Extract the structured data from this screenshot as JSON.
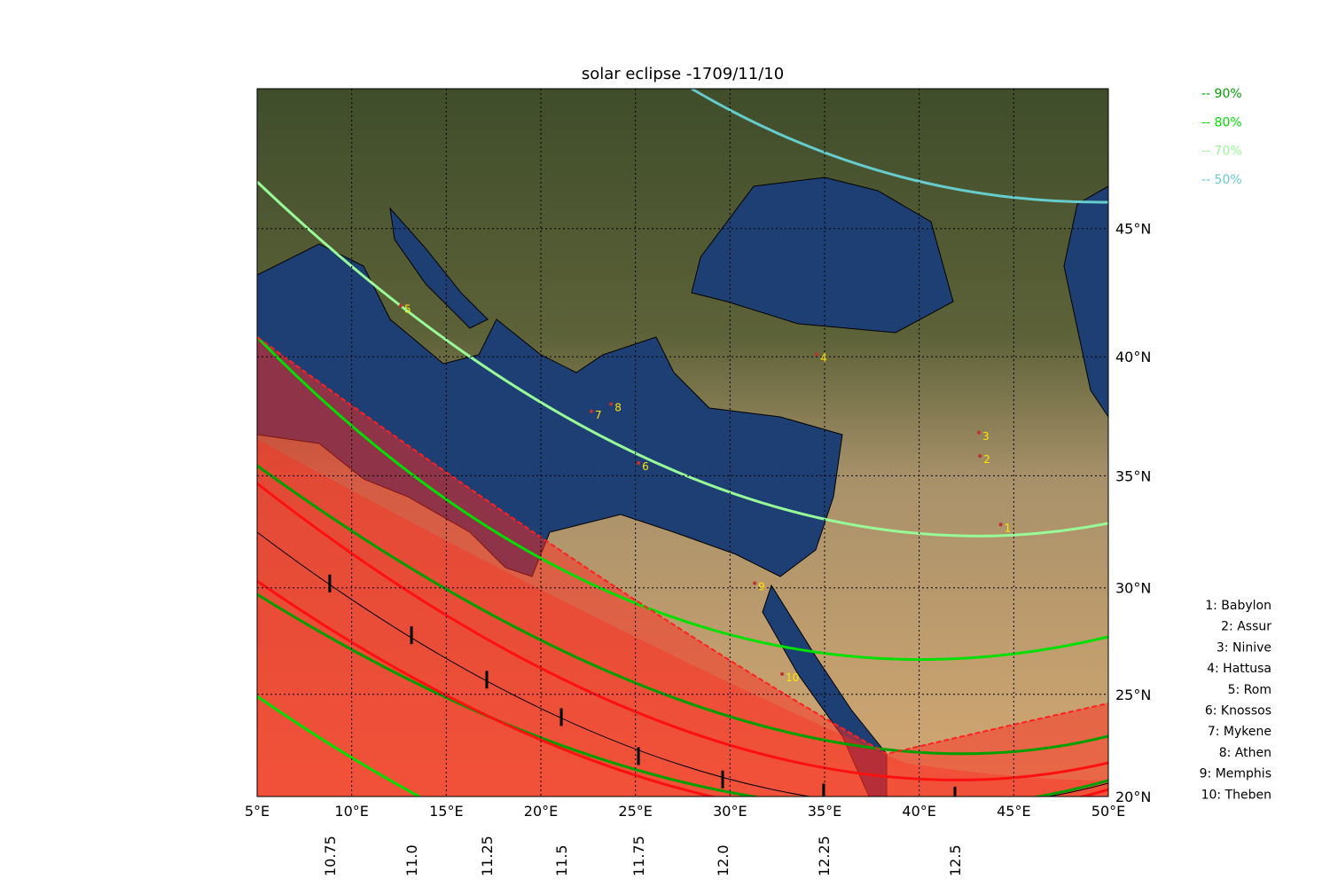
{
  "map": {
    "title": "solar eclipse -1709/11/10",
    "projection": "mercator",
    "xlim": [
      5,
      50
    ],
    "ylim": [
      20,
      50
    ],
    "grid": true,
    "xticks": [
      {
        "value": 5,
        "label": "5°E"
      },
      {
        "value": 10,
        "label": "10°E"
      },
      {
        "value": 15,
        "label": "15°E"
      },
      {
        "value": 20,
        "label": "20°E"
      },
      {
        "value": 25,
        "label": "25°E"
      },
      {
        "value": 30,
        "label": "30°E"
      },
      {
        "value": 35,
        "label": "35°E"
      },
      {
        "value": 40,
        "label": "40°E"
      },
      {
        "value": 45,
        "label": "45°E"
      },
      {
        "value": 50,
        "label": "50°E"
      }
    ],
    "yticks": [
      {
        "value": 20,
        "label": "20°N"
      },
      {
        "value": 25,
        "label": "25°N"
      },
      {
        "value": 30,
        "label": "30°N"
      },
      {
        "value": 35,
        "label": "35°N"
      },
      {
        "value": 40,
        "label": "40°N"
      },
      {
        "value": 45,
        "label": "45°N"
      }
    ],
    "time_marks": [
      {
        "time": "10.75",
        "lon": 8.84,
        "lat": 30.2
      },
      {
        "time": "11.0",
        "lon": 13.16,
        "lat": 27.8
      },
      {
        "time": "11.25",
        "lon": 17.14,
        "lat": 25.7
      },
      {
        "time": "11.5",
        "lon": 21.08,
        "lat": 23.9
      },
      {
        "time": "11.75",
        "lon": 25.16,
        "lat": 22.0
      },
      {
        "time": "12.0",
        "lon": 29.61,
        "lat": 20.85
      },
      {
        "time": "12.25",
        "lon": 34.95,
        "lat": 20.2
      },
      {
        "time": "12.5",
        "lon": 41.89,
        "lat": 20.05
      }
    ],
    "legend": [
      {
        "label": "-- 90%",
        "color": "#00a000"
      },
      {
        "label": "-- 80%",
        "color": "#00e000"
      },
      {
        "label": "-- 70%",
        "color": "#98fb98"
      },
      {
        "label": "-- 50%",
        "color": "#66cccc"
      }
    ],
    "cities": [
      {
        "marker": "1",
        "label": "1: Babylon",
        "lon": 44.5,
        "lat": 32.7
      },
      {
        "marker": "2",
        "label": "2: Assur",
        "lon": 43.4,
        "lat": 35.7
      },
      {
        "marker": "3",
        "label": "3: Ninive",
        "lon": 43.35,
        "lat": 36.7
      },
      {
        "marker": "4",
        "label": "4: Hattusa",
        "lon": 34.77,
        "lat": 39.95
      },
      {
        "marker": "5",
        "label": "5: Rom",
        "lon": 12.78,
        "lat": 41.9
      },
      {
        "marker": "6",
        "label": "6: Knossos",
        "lon": 25.35,
        "lat": 35.4
      },
      {
        "marker": "7",
        "label": "7: Mykene",
        "lon": 22.86,
        "lat": 37.6
      },
      {
        "marker": "8",
        "label": "8: Athen",
        "lon": 23.9,
        "lat": 37.9
      },
      {
        "marker": "9",
        "label": "9: Memphis",
        "lon": 31.49,
        "lat": 30.05
      },
      {
        "marker": "10",
        "label": "10: Theben",
        "lon": 32.94,
        "lat": 25.8
      }
    ]
  }
}
